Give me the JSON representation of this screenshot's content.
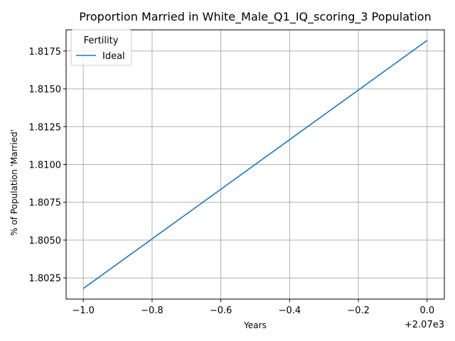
{
  "chart_data": {
    "type": "line",
    "title": "Proportion Married in White_Male_Q1_IQ_scoring_3 Population",
    "xlabel": "Years",
    "ylabel": "% of Population 'Married'",
    "x_offset_label": "+2.07e3",
    "x_tick_labels": [
      "−1.0",
      "−0.8",
      "−0.6",
      "−0.4",
      "−0.2",
      "0.0"
    ],
    "x_ticks": [
      -1.0,
      -0.8,
      -0.6,
      -0.4,
      -0.2,
      0.0
    ],
    "y_ticks": [
      1.8025,
      1.805,
      1.8075,
      1.81,
      1.8125,
      1.815,
      1.8175
    ],
    "y_tick_labels": [
      "1.8025",
      "1.8050",
      "1.8075",
      "1.8100",
      "1.8125",
      "1.8150",
      "1.8175"
    ],
    "xlim": [
      -1.05,
      0.05
    ],
    "ylim": [
      1.8011,
      1.8189
    ],
    "grid": true,
    "legend": {
      "title": "Fertility",
      "placement": "top-left"
    },
    "series": [
      {
        "name": "Ideal",
        "color": "#1f77b4",
        "x": [
          -1.0,
          0.0
        ],
        "values": [
          1.8018,
          1.8182
        ]
      }
    ]
  }
}
